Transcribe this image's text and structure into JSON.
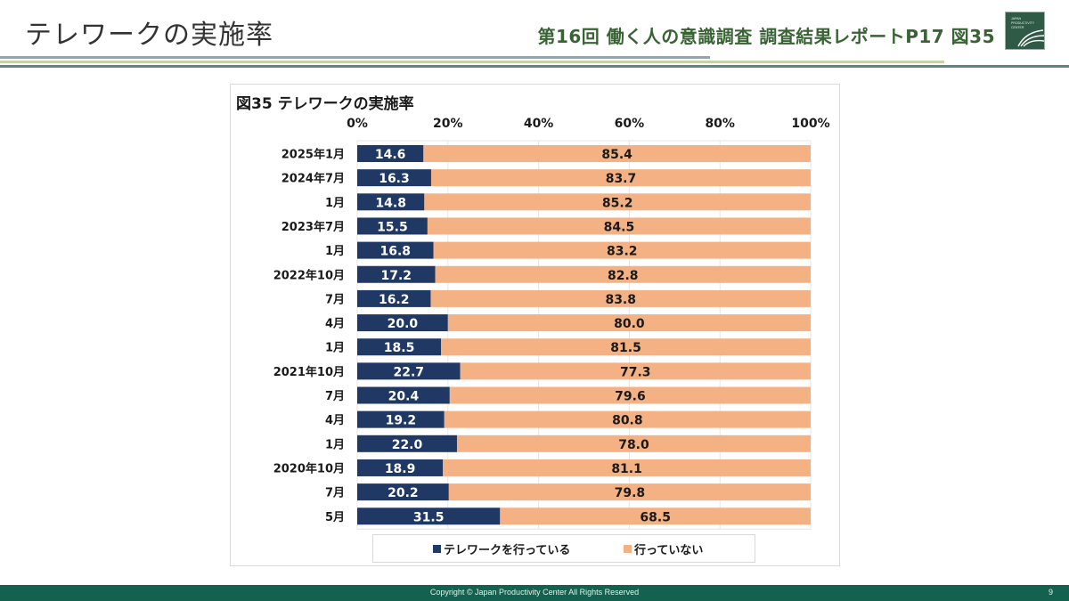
{
  "header": {
    "title": "テレワークの実施率",
    "report_ref": "第16回 働く人の意識調査 調査結果レポートP17 図35",
    "logo_icon": "japan-productivity-center-logo",
    "logo_text": [
      "JAPAN",
      "PRODUCTIVITY",
      "CENTER"
    ]
  },
  "footer": {
    "copyright": "Copyright © Japan Productivity Center All Rights Reserved",
    "page_number": "9"
  },
  "colors": {
    "series_doing": "#203864",
    "series_not_doing": "#f4b183",
    "header_green": "#3a6335",
    "footer_bg": "#14614f"
  },
  "chart_data": {
    "type": "bar",
    "orientation": "horizontal",
    "stacked": "percent",
    "title": "図35 テレワークの実施率",
    "xlabel": "",
    "ylabel": "",
    "xlim": [
      0,
      100
    ],
    "x_ticks": [
      "0%",
      "20%",
      "40%",
      "60%",
      "80%",
      "100%"
    ],
    "x_axis_position": "top",
    "grid": true,
    "legend_position": "bottom",
    "categories": [
      "2025年1月",
      "2024年7月",
      "1月",
      "2023年7月",
      "1月",
      "2022年10月",
      "7月",
      "4月",
      "1月",
      "2021年10月",
      "7月",
      "4月",
      "1月",
      "2020年10月",
      "7月",
      "5月"
    ],
    "series": [
      {
        "name": "テレワークを行っている",
        "color": "#203864",
        "label_color": "#ffffff",
        "values": [
          14.6,
          16.3,
          14.8,
          15.5,
          16.8,
          17.2,
          16.2,
          20.0,
          18.5,
          22.7,
          20.4,
          19.2,
          22.0,
          18.9,
          20.2,
          31.5
        ]
      },
      {
        "name": "行っていない",
        "color": "#f4b183",
        "label_color": "#1a1a1a",
        "values": [
          85.4,
          83.7,
          85.2,
          84.5,
          83.2,
          82.8,
          83.8,
          80.0,
          81.5,
          77.3,
          79.6,
          80.8,
          78.0,
          81.1,
          79.8,
          68.5
        ]
      }
    ]
  }
}
